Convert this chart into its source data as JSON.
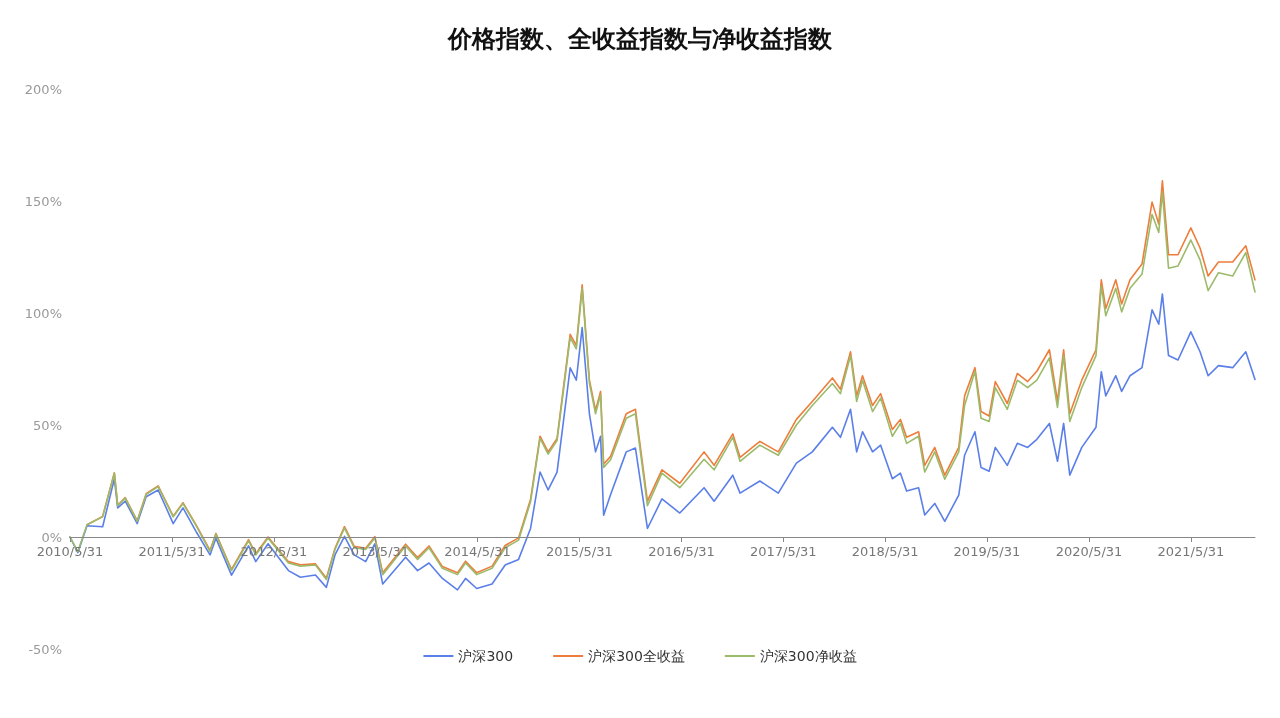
{
  "chart_data": {
    "type": "line",
    "title": "价格指数、全收益指数与净收益指数",
    "x": [
      "2010-05-31",
      "2010-06-28",
      "2010-07-31",
      "2010-09-25",
      "2010-11-06",
      "2010-11-18",
      "2010-12-15",
      "2011-01-27",
      "2011-02-28",
      "2011-04-12",
      "2011-06-05",
      "2011-07-10",
      "2011-08-28",
      "2011-10-15",
      "2011-11-05",
      "2011-12-31",
      "2012-03-01",
      "2012-03-27",
      "2012-05-10",
      "2012-07-22",
      "2012-09-03",
      "2012-10-27",
      "2012-12-05",
      "2013-01-05",
      "2013-02-08",
      "2013-03-15",
      "2013-04-25",
      "2013-05-28",
      "2013-06-25",
      "2013-09-15",
      "2013-10-28",
      "2013-12-08",
      "2014-01-25",
      "2014-03-20",
      "2014-04-18",
      "2014-05-28",
      "2014-07-22",
      "2014-09-07",
      "2014-10-25",
      "2014-12-07",
      "2015-01-10",
      "2015-02-08",
      "2015-03-12",
      "2015-04-28",
      "2015-05-20",
      "2015-06-10",
      "2015-07-06",
      "2015-07-28",
      "2015-08-15",
      "2015-08-26",
      "2015-09-20",
      "2015-11-15",
      "2015-12-18",
      "2016-01-30",
      "2016-03-22",
      "2016-05-25",
      "2016-08-20",
      "2016-09-25",
      "2016-12-01",
      "2016-12-27",
      "2017-03-08",
      "2017-05-13",
      "2017-07-17",
      "2017-09-12",
      "2017-11-23",
      "2017-12-22",
      "2018-01-27",
      "2018-02-18",
      "2018-03-11",
      "2018-04-16",
      "2018-05-15",
      "2018-06-26",
      "2018-07-25",
      "2018-08-16",
      "2018-09-28",
      "2018-10-20",
      "2018-11-25",
      "2018-12-31",
      "2019-02-19",
      "2019-03-12",
      "2019-04-18",
      "2019-05-10",
      "2019-06-08",
      "2019-06-30",
      "2019-08-12",
      "2019-09-17",
      "2019-10-24",
      "2019-11-26",
      "2020-01-10",
      "2020-02-08",
      "2020-03-01",
      "2020-03-23",
      "2020-05-05",
      "2020-06-25",
      "2020-07-14",
      "2020-07-30",
      "2020-09-04",
      "2020-09-25",
      "2020-10-25",
      "2020-12-07",
      "2021-01-12",
      "2021-02-05",
      "2021-02-18",
      "2021-03-12",
      "2021-04-15",
      "2021-05-31",
      "2021-07-03",
      "2021-08-01",
      "2021-09-07",
      "2021-10-28",
      "2021-12-14",
      "2022-01-16"
    ],
    "series": [
      {
        "name": "沪深300",
        "color": "#5b7fe8",
        "values": [
          0,
          -7,
          5,
          4.6,
          26,
          13,
          16,
          6,
          18,
          21,
          6,
          13,
          2,
          -8,
          -0.5,
          -17,
          -4,
          -11,
          -3,
          -15,
          -18,
          -17,
          -22.5,
          -8,
          0.3,
          -8,
          -11,
          -3,
          -21,
          -9,
          -15,
          -11.6,
          -18.5,
          -23.6,
          -18.5,
          -23,
          -21,
          -12.5,
          -10,
          3.8,
          29,
          21,
          29,
          75.5,
          70,
          93.5,
          55,
          38,
          45,
          9.7,
          19,
          38,
          39.7,
          3.8,
          17,
          10.7,
          22,
          16,
          27.6,
          19.6,
          25,
          19.6,
          33,
          38,
          49,
          44.5,
          57,
          38,
          47,
          38,
          41,
          26,
          28.5,
          20.5,
          22,
          9.8,
          15,
          7,
          18.7,
          36.5,
          47,
          31,
          29.4,
          40,
          32,
          41.8,
          40,
          43.6,
          50.7,
          33.8,
          50.7,
          27.6,
          40,
          49,
          73.8,
          63,
          72,
          65,
          72,
          75.6,
          101.4,
          95,
          108.5,
          81,
          79,
          91.6,
          82.7,
          72,
          76.5,
          75.6,
          82.7,
          70.3
        ]
      },
      {
        "name": "沪深300全收益",
        "color": "#ed7d3a",
        "values": [
          null,
          null,
          5.5,
          9.2,
          28.7,
          14.2,
          17.6,
          7.2,
          19.3,
          22.8,
          9.3,
          15.3,
          5,
          -6,
          1.6,
          -14.5,
          -1.2,
          -7.5,
          0,
          -11,
          -12.4,
          -12,
          -18.4,
          -5,
          4.6,
          -4.2,
          -5,
          0.2,
          -16,
          -3.2,
          -9.2,
          -4,
          -13.2,
          -16,
          -10.8,
          -16,
          -13,
          -3.8,
          -0.4,
          16.8,
          45,
          38,
          44,
          90.5,
          85.5,
          112.6,
          70,
          56.5,
          65,
          32.5,
          36,
          55,
          57,
          16,
          30,
          24,
          38,
          32,
          46,
          35.6,
          42.7,
          38,
          52.5,
          60.5,
          71,
          66,
          82.7,
          63,
          72,
          58.7,
          64,
          48,
          52.5,
          44.5,
          47,
          32,
          40,
          27.6,
          40,
          63,
          75.6,
          56,
          54,
          69.4,
          59.6,
          73,
          69.4,
          74,
          83.6,
          60.5,
          83.6,
          55,
          70,
          83.6,
          114.8,
          102,
          114.8,
          104,
          114.8,
          121.9,
          149.5,
          139.7,
          159,
          126,
          126,
          138,
          129,
          116.5,
          122.8,
          122.8,
          130,
          114.8
        ]
      },
      {
        "name": "沪深300净收益",
        "color": "#9bbb6b",
        "values": [
          0,
          -6.5,
          5.5,
          9,
          28.5,
          14,
          17.4,
          7,
          19,
          22.5,
          9,
          15,
          4.6,
          -6.5,
          1.2,
          -15,
          -1.7,
          -8,
          -0.5,
          -11.6,
          -13,
          -12.5,
          -19,
          -5.6,
          4,
          -4.8,
          -5.6,
          -0.5,
          -16.8,
          -4,
          -10,
          -4.8,
          -14,
          -16.8,
          -11.6,
          -16.8,
          -14,
          -4.8,
          -1.4,
          15.7,
          44,
          37,
          43,
          89,
          84,
          111,
          68.7,
          55,
          63.6,
          31,
          34.5,
          53,
          55,
          14,
          28.5,
          22,
          34.7,
          30,
          44.5,
          33.8,
          41,
          36.5,
          50,
          58.7,
          68.5,
          64,
          81,
          60.5,
          70,
          56,
          62,
          45,
          50.7,
          41.8,
          45,
          29,
          38,
          25.8,
          38,
          58.7,
          74,
          53,
          51.6,
          66.7,
          57,
          70,
          66.7,
          70,
          80,
          57.8,
          81,
          51.6,
          66.7,
          81,
          112,
          98.8,
          111,
          100.5,
          111,
          117.4,
          144,
          136,
          154,
          120,
          121,
          132.6,
          123.7,
          110,
          118,
          116.5,
          127,
          109.4
        ]
      }
    ],
    "xlim": [
      "2010-05-31",
      "2022-01-16"
    ],
    "xticks": [
      {
        "value": "2010-05-31",
        "label": "2010/5/31"
      },
      {
        "value": "2011-05-31",
        "label": "2011/5/31"
      },
      {
        "value": "2012-05-31",
        "label": "2012/5/31"
      },
      {
        "value": "2013-05-31",
        "label": "2013/5/31"
      },
      {
        "value": "2014-05-31",
        "label": "2014/5/31"
      },
      {
        "value": "2015-05-31",
        "label": "2015/5/31"
      },
      {
        "value": "2016-05-31",
        "label": "2016/5/31"
      },
      {
        "value": "2017-05-31",
        "label": "2017/5/31"
      },
      {
        "value": "2018-05-31",
        "label": "2018/5/31"
      },
      {
        "value": "2019-05-31",
        "label": "2019/5/31"
      },
      {
        "value": "2020-05-31",
        "label": "2020/5/31"
      },
      {
        "value": "2021-05-31",
        "label": "2021/5/31"
      }
    ],
    "ylim": [
      -50,
      200
    ],
    "yticks": [
      {
        "value": -50,
        "label": "-50%"
      },
      {
        "value": 0,
        "label": "0%"
      },
      {
        "value": 50,
        "label": "50%"
      },
      {
        "value": 100,
        "label": "100%"
      },
      {
        "value": 150,
        "label": "150%"
      },
      {
        "value": 200,
        "label": "200%"
      }
    ],
    "grid": false,
    "legend": "bottom",
    "marker": "none",
    "line_style": "solid"
  }
}
